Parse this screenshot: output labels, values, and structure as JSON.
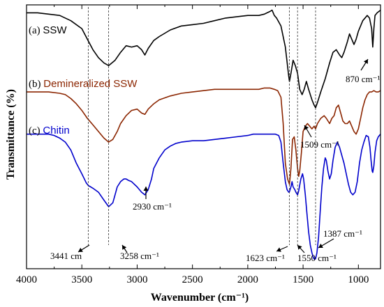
{
  "chart_data": {
    "type": "line",
    "xlabel": "Wavenumber (cm⁻¹)",
    "ylabel": "Transmittance (%)",
    "xlim": [
      4000,
      800
    ],
    "x_reversed": true,
    "x_ticks": [
      {
        "value": 4000,
        "label": "4000"
      },
      {
        "value": 3500,
        "label": "3500"
      },
      {
        "value": 3000,
        "label": "3000"
      },
      {
        "value": 2500,
        "label": "2500"
      },
      {
        "value": 2000,
        "label": "2000"
      },
      {
        "value": 1500,
        "label": "1500"
      },
      {
        "value": 1000,
        "label": "1000"
      }
    ],
    "y_ticks_shown": false,
    "grid": false,
    "ylim": [
      0,
      100
    ],
    "series": [
      {
        "label": "(a) SSW",
        "label_prefix": "(a)",
        "label_name": "SSW",
        "color": "#000000",
        "points": [
          [
            4000,
            97
          ],
          [
            3900,
            97
          ],
          [
            3800,
            96.5
          ],
          [
            3700,
            96
          ],
          [
            3600,
            94
          ],
          [
            3500,
            91
          ],
          [
            3450,
            87
          ],
          [
            3400,
            83
          ],
          [
            3350,
            80
          ],
          [
            3300,
            78
          ],
          [
            3258,
            77
          ],
          [
            3200,
            79
          ],
          [
            3150,
            82
          ],
          [
            3100,
            84.5
          ],
          [
            3050,
            84
          ],
          [
            3000,
            84.5
          ],
          [
            2960,
            83
          ],
          [
            2930,
            81
          ],
          [
            2900,
            83.5
          ],
          [
            2850,
            86.5
          ],
          [
            2800,
            88
          ],
          [
            2700,
            90.5
          ],
          [
            2600,
            92
          ],
          [
            2500,
            92.5
          ],
          [
            2400,
            93
          ],
          [
            2300,
            94
          ],
          [
            2200,
            95
          ],
          [
            2100,
            95.5
          ],
          [
            2000,
            96
          ],
          [
            1900,
            96
          ],
          [
            1850,
            96.5
          ],
          [
            1800,
            97.5
          ],
          [
            1780,
            98
          ],
          [
            1760,
            96
          ],
          [
            1740,
            95
          ],
          [
            1700,
            92
          ],
          [
            1660,
            84
          ],
          [
            1630,
            73
          ],
          [
            1623,
            71
          ],
          [
            1610,
            74
          ],
          [
            1590,
            79
          ],
          [
            1570,
            77
          ],
          [
            1550,
            74
          ],
          [
            1530,
            68
          ],
          [
            1509,
            66
          ],
          [
            1490,
            68
          ],
          [
            1470,
            71
          ],
          [
            1450,
            68
          ],
          [
            1420,
            64
          ],
          [
            1400,
            62
          ],
          [
            1387,
            61
          ],
          [
            1370,
            63
          ],
          [
            1340,
            67
          ],
          [
            1300,
            72
          ],
          [
            1260,
            78
          ],
          [
            1230,
            82
          ],
          [
            1200,
            83
          ],
          [
            1170,
            81
          ],
          [
            1150,
            80
          ],
          [
            1130,
            82
          ],
          [
            1100,
            86
          ],
          [
            1080,
            89
          ],
          [
            1060,
            87
          ],
          [
            1040,
            85
          ],
          [
            1020,
            87
          ],
          [
            1000,
            90
          ],
          [
            960,
            94
          ],
          [
            920,
            96
          ],
          [
            900,
            95
          ],
          [
            880,
            91
          ],
          [
            870,
            84
          ],
          [
            860,
            91
          ],
          [
            850,
            96
          ],
          [
            830,
            97
          ],
          [
            800,
            98
          ]
        ]
      },
      {
        "label": "(b) Demineralized SSW",
        "label_prefix": "(b)",
        "label_name": "Demineralized SSW",
        "color": "#8b2500",
        "points": [
          [
            4000,
            67
          ],
          [
            3900,
            67
          ],
          [
            3800,
            67
          ],
          [
            3700,
            66.5
          ],
          [
            3650,
            66
          ],
          [
            3600,
            64.5
          ],
          [
            3550,
            62.5
          ],
          [
            3500,
            60
          ],
          [
            3450,
            57
          ],
          [
            3400,
            54.5
          ],
          [
            3350,
            52
          ],
          [
            3300,
            49.5
          ],
          [
            3258,
            48
          ],
          [
            3220,
            49
          ],
          [
            3180,
            52
          ],
          [
            3150,
            55
          ],
          [
            3100,
            58
          ],
          [
            3050,
            60
          ],
          [
            3000,
            60.5
          ],
          [
            2960,
            59
          ],
          [
            2930,
            58.5
          ],
          [
            2900,
            60.5
          ],
          [
            2850,
            62.5
          ],
          [
            2800,
            64
          ],
          [
            2700,
            65.5
          ],
          [
            2600,
            66.5
          ],
          [
            2500,
            67
          ],
          [
            2400,
            67.5
          ],
          [
            2300,
            68
          ],
          [
            2200,
            68
          ],
          [
            2100,
            68
          ],
          [
            2000,
            68
          ],
          [
            1900,
            68
          ],
          [
            1850,
            68.5
          ],
          [
            1800,
            68.5
          ],
          [
            1760,
            68
          ],
          [
            1730,
            67.5
          ],
          [
            1700,
            65
          ],
          [
            1680,
            55
          ],
          [
            1660,
            40
          ],
          [
            1640,
            34
          ],
          [
            1623,
            32
          ],
          [
            1610,
            38
          ],
          [
            1595,
            49
          ],
          [
            1580,
            50
          ],
          [
            1565,
            45
          ],
          [
            1550,
            38
          ],
          [
            1540,
            35
          ],
          [
            1530,
            37
          ],
          [
            1515,
            44
          ],
          [
            1500,
            52
          ],
          [
            1480,
            54
          ],
          [
            1460,
            55
          ],
          [
            1440,
            54
          ],
          [
            1420,
            53
          ],
          [
            1400,
            54
          ],
          [
            1387,
            53
          ],
          [
            1370,
            55
          ],
          [
            1340,
            57
          ],
          [
            1310,
            58
          ],
          [
            1290,
            57
          ],
          [
            1260,
            55
          ],
          [
            1240,
            57
          ],
          [
            1220,
            58
          ],
          [
            1200,
            61
          ],
          [
            1180,
            62
          ],
          [
            1160,
            59
          ],
          [
            1140,
            56
          ],
          [
            1120,
            55
          ],
          [
            1100,
            55
          ],
          [
            1080,
            56
          ],
          [
            1060,
            54
          ],
          [
            1040,
            52
          ],
          [
            1020,
            51
          ],
          [
            1000,
            53
          ],
          [
            980,
            57
          ],
          [
            960,
            61
          ],
          [
            940,
            64
          ],
          [
            920,
            66
          ],
          [
            900,
            67
          ],
          [
            880,
            67
          ],
          [
            860,
            67.5
          ],
          [
            840,
            67
          ],
          [
            820,
            67
          ],
          [
            800,
            67.5
          ]
        ]
      },
      {
        "label": "(c) Chitin",
        "label_prefix": "(c)",
        "label_name": "Chitin",
        "color": "#0000cc",
        "points": [
          [
            4000,
            51
          ],
          [
            3900,
            51
          ],
          [
            3800,
            51
          ],
          [
            3750,
            50.5
          ],
          [
            3700,
            49.5
          ],
          [
            3650,
            48
          ],
          [
            3600,
            45
          ],
          [
            3550,
            40
          ],
          [
            3500,
            36
          ],
          [
            3460,
            32.5
          ],
          [
            3441,
            31.5
          ],
          [
            3420,
            31
          ],
          [
            3400,
            30.5
          ],
          [
            3350,
            29
          ],
          [
            3300,
            26
          ],
          [
            3258,
            23.5
          ],
          [
            3220,
            25
          ],
          [
            3200,
            28
          ],
          [
            3180,
            31
          ],
          [
            3150,
            33
          ],
          [
            3120,
            34
          ],
          [
            3100,
            34
          ],
          [
            3080,
            33.5
          ],
          [
            3050,
            33
          ],
          [
            3000,
            31
          ],
          [
            2960,
            29
          ],
          [
            2930,
            28
          ],
          [
            2900,
            30
          ],
          [
            2870,
            34
          ],
          [
            2850,
            38
          ],
          [
            2800,
            42
          ],
          [
            2750,
            45
          ],
          [
            2700,
            46.5
          ],
          [
            2650,
            47.5
          ],
          [
            2600,
            48
          ],
          [
            2500,
            48.5
          ],
          [
            2400,
            48.5
          ],
          [
            2300,
            49
          ],
          [
            2200,
            49.5
          ],
          [
            2100,
            50
          ],
          [
            2000,
            50.5
          ],
          [
            1950,
            51
          ],
          [
            1900,
            51
          ],
          [
            1850,
            51
          ],
          [
            1800,
            51
          ],
          [
            1750,
            51
          ],
          [
            1720,
            50.5
          ],
          [
            1700,
            48
          ],
          [
            1680,
            40
          ],
          [
            1660,
            33
          ],
          [
            1645,
            30
          ],
          [
            1630,
            29
          ],
          [
            1623,
            29.2
          ],
          [
            1610,
            31
          ],
          [
            1600,
            33
          ],
          [
            1590,
            31
          ],
          [
            1575,
            30
          ],
          [
            1565,
            29
          ],
          [
            1550,
            28
          ],
          [
            1540,
            29.5
          ],
          [
            1520,
            34
          ],
          [
            1505,
            36
          ],
          [
            1495,
            34
          ],
          [
            1480,
            28
          ],
          [
            1465,
            21
          ],
          [
            1450,
            14
          ],
          [
            1435,
            9
          ],
          [
            1420,
            6
          ],
          [
            1405,
            4
          ],
          [
            1395,
            3.5
          ],
          [
            1387,
            3.8
          ],
          [
            1375,
            6
          ],
          [
            1360,
            12
          ],
          [
            1345,
            22
          ],
          [
            1330,
            31
          ],
          [
            1315,
            38
          ],
          [
            1300,
            42
          ],
          [
            1290,
            41
          ],
          [
            1275,
            37
          ],
          [
            1260,
            34
          ],
          [
            1245,
            36
          ],
          [
            1230,
            41
          ],
          [
            1210,
            46
          ],
          [
            1190,
            48
          ],
          [
            1170,
            46
          ],
          [
            1150,
            43
          ],
          [
            1130,
            40
          ],
          [
            1110,
            36
          ],
          [
            1090,
            32
          ],
          [
            1070,
            29
          ],
          [
            1050,
            28
          ],
          [
            1030,
            29
          ],
          [
            1010,
            33
          ],
          [
            990,
            40
          ],
          [
            970,
            45
          ],
          [
            950,
            48
          ],
          [
            930,
            50.5
          ],
          [
            910,
            50
          ],
          [
            895,
            46
          ],
          [
            885,
            41
          ],
          [
            875,
            37
          ],
          [
            870,
            36.5
          ],
          [
            860,
            39
          ],
          [
            850,
            44
          ],
          [
            835,
            48.5
          ],
          [
            820,
            50
          ],
          [
            800,
            51
          ]
        ]
      }
    ],
    "annotations": [
      {
        "text": "3441 cm",
        "x_value": 3441
      },
      {
        "text": "3258 cm⁻¹",
        "x_value": 3258
      },
      {
        "text": "2930 cm⁻¹",
        "x_value": 2930
      },
      {
        "text": "1623 cm⁻¹",
        "x_value": 1623
      },
      {
        "text": "1550 cm⁻¹",
        "x_value": 1550
      },
      {
        "text": "1509 cm⁻¹",
        "x_value": 1509
      },
      {
        "text": "1387 cm⁻¹",
        "x_value": 1387
      },
      {
        "text": "870 cm⁻¹",
        "x_value": 870
      }
    ],
    "reference_lines": [
      {
        "x_value": 3441,
        "style": "dashed"
      },
      {
        "x_value": 3258,
        "style": "dashed"
      },
      {
        "x_value": 1623,
        "style": "dashed"
      },
      {
        "x_value": 1550,
        "style": "dashed"
      },
      {
        "x_value": 1387,
        "style": "dashed"
      }
    ]
  }
}
